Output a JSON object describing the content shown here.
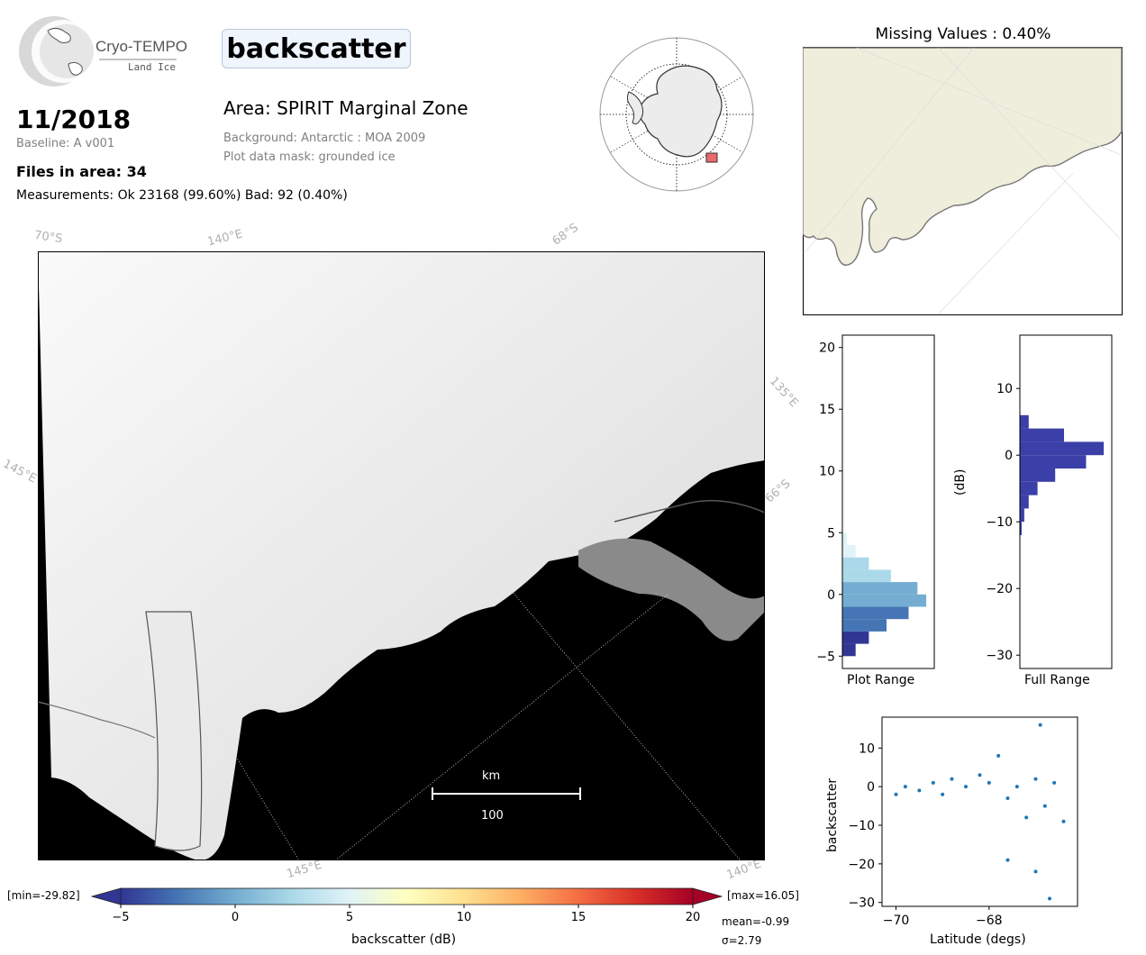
{
  "logo": {
    "name": "Cryo-TEMPO",
    "sub": "Land Ice"
  },
  "header": {
    "param_title": "backscatter",
    "date": "11/2018",
    "baseline": "Baseline: A v001",
    "files": "Files in area: 34",
    "measurements": "Measurements: Ok 23168 (99.60%) Bad: 92 (0.40%)",
    "area": "Area: SPIRIT Marginal Zone",
    "background": "Background: Antarctic : MOA 2009",
    "mask": "Plot data mask: grounded ice"
  },
  "map": {
    "grid_labels": [
      "70°S",
      "140°E",
      "68°S",
      "135°E",
      "145°E",
      "66°S",
      "145°E",
      "140°E"
    ],
    "scalebar": {
      "unit": "km",
      "value": "100"
    }
  },
  "missing": {
    "title": "Missing Values : 0.40%"
  },
  "colorbar": {
    "min_label": "[min=-29.82]",
    "max_label": "[max=16.05]",
    "ticks": [
      "−5",
      "0",
      "5",
      "10",
      "15",
      "20"
    ],
    "label": "backscatter (dB)",
    "mean": "mean=-0.99",
    "sigma": "σ=2.79",
    "range": [
      -5,
      20
    ],
    "colors": [
      "#313695",
      "#4575b4",
      "#74add1",
      "#abd9e9",
      "#e0f3f8",
      "#ffffbf",
      "#fee090",
      "#fdae61",
      "#f46d43",
      "#d73027",
      "#a50026"
    ]
  },
  "chart_data": [
    {
      "type": "bar",
      "orientation": "horizontal",
      "xlabel": "Plot Range",
      "ylabel": "",
      "ylim": [
        -6,
        21
      ],
      "yticks": [
        "20",
        "15",
        "10",
        "5",
        "0",
        "−5"
      ],
      "bins": [
        -5,
        -4,
        -3,
        -2,
        -1,
        0,
        1,
        2,
        3,
        4
      ],
      "values": [
        0.15,
        0.3,
        0.5,
        0.75,
        0.95,
        0.85,
        0.55,
        0.3,
        0.15,
        0.05
      ]
    },
    {
      "type": "bar",
      "orientation": "horizontal",
      "xlabel": "Full Range",
      "ylabel": "(dB)",
      "ylim": [
        -32,
        18
      ],
      "yticks": [
        "10",
        "0",
        "−10",
        "−20",
        "−30"
      ],
      "bins": [
        -12,
        -10,
        -8,
        -6,
        -4,
        -2,
        0,
        2,
        4
      ],
      "values": [
        0.02,
        0.05,
        0.1,
        0.2,
        0.4,
        0.75,
        0.95,
        0.5,
        0.1
      ],
      "color": "#3b3fa8"
    },
    {
      "type": "scatter",
      "xlabel": "Latitude (degs)",
      "ylabel": "backscatter",
      "xlim": [
        -70.3,
        -66.1
      ],
      "ylim": [
        -31,
        18
      ],
      "xticks": [
        "−70",
        "−68"
      ],
      "yticks": [
        "10",
        "0",
        "−10",
        "−20",
        "−30"
      ],
      "color": "#1f77b4",
      "points": [
        [
          -70.0,
          -2
        ],
        [
          -69.8,
          0
        ],
        [
          -69.5,
          -1
        ],
        [
          -69.2,
          1
        ],
        [
          -69.0,
          -2
        ],
        [
          -68.8,
          2
        ],
        [
          -68.5,
          0
        ],
        [
          -68.2,
          3
        ],
        [
          -68.0,
          1
        ],
        [
          -67.8,
          8
        ],
        [
          -67.6,
          -3
        ],
        [
          -67.4,
          0
        ],
        [
          -67.2,
          -8
        ],
        [
          -67.0,
          2
        ],
        [
          -66.8,
          -5
        ],
        [
          -66.6,
          1
        ],
        [
          -66.4,
          -9
        ],
        [
          -67.6,
          -19
        ],
        [
          -67.0,
          -22
        ],
        [
          -66.7,
          -29
        ],
        [
          -66.9,
          16
        ]
      ]
    }
  ]
}
